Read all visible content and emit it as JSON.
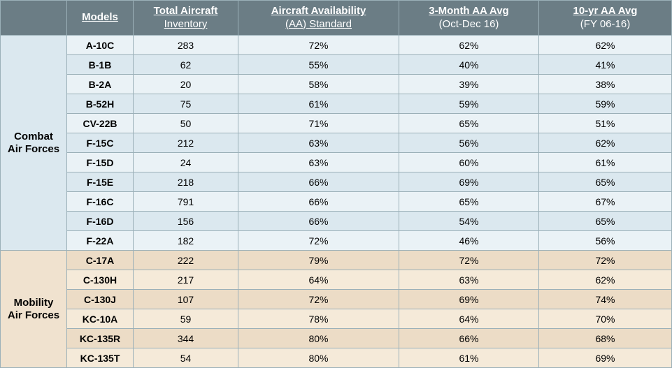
{
  "columns": {
    "models": "Models",
    "inventory": {
      "line1": "Total Aircraft",
      "line2": "Inventory"
    },
    "aa_standard": {
      "line1": "Aircraft Availability",
      "line2": "(AA) Standard"
    },
    "three_month": {
      "line1": "3-Month AA Avg",
      "line2": "(Oct-Dec 16)"
    },
    "ten_year": {
      "line1": "10-yr AA Avg",
      "line2": "(FY 06-16)"
    }
  },
  "groups": [
    {
      "label_line1": "Combat",
      "label_line2": "Air Forces",
      "class": "combat",
      "cat_class": "cat-combat",
      "rows": [
        {
          "model": "A-10C",
          "inventory": "283",
          "aa_standard": "72%",
          "three_month": "62%",
          "ten_year": "62%"
        },
        {
          "model": "B-1B",
          "inventory": "62",
          "aa_standard": "55%",
          "three_month": "40%",
          "ten_year": "41%"
        },
        {
          "model": "B-2A",
          "inventory": "20",
          "aa_standard": "58%",
          "three_month": "39%",
          "ten_year": "38%"
        },
        {
          "model": "B-52H",
          "inventory": "75",
          "aa_standard": "61%",
          "three_month": "59%",
          "ten_year": "59%"
        },
        {
          "model": "CV-22B",
          "inventory": "50",
          "aa_standard": "71%",
          "three_month": "65%",
          "ten_year": "51%"
        },
        {
          "model": "F-15C",
          "inventory": "212",
          "aa_standard": "63%",
          "three_month": "56%",
          "ten_year": "62%"
        },
        {
          "model": "F-15D",
          "inventory": "24",
          "aa_standard": "63%",
          "three_month": "60%",
          "ten_year": "61%"
        },
        {
          "model": "F-15E",
          "inventory": "218",
          "aa_standard": "66%",
          "three_month": "69%",
          "ten_year": "65%"
        },
        {
          "model": "F-16C",
          "inventory": "791",
          "aa_standard": "66%",
          "three_month": "65%",
          "ten_year": "67%"
        },
        {
          "model": "F-16D",
          "inventory": "156",
          "aa_standard": "66%",
          "three_month": "54%",
          "ten_year": "65%"
        },
        {
          "model": "F-22A",
          "inventory": "182",
          "aa_standard": "72%",
          "three_month": "46%",
          "ten_year": "56%"
        }
      ]
    },
    {
      "label_line1": "Mobility",
      "label_line2": "Air Forces",
      "class": "mobility",
      "cat_class": "cat-mobility",
      "rows": [
        {
          "model": "C-17A",
          "inventory": "222",
          "aa_standard": "79%",
          "three_month": "72%",
          "ten_year": "72%"
        },
        {
          "model": "C-130H",
          "inventory": "217",
          "aa_standard": "64%",
          "three_month": "63%",
          "ten_year": "62%"
        },
        {
          "model": "C-130J",
          "inventory": "107",
          "aa_standard": "72%",
          "three_month": "69%",
          "ten_year": "74%"
        },
        {
          "model": "KC-10A",
          "inventory": "59",
          "aa_standard": "78%",
          "three_month": "64%",
          "ten_year": "70%"
        },
        {
          "model": "KC-135R",
          "inventory": "344",
          "aa_standard": "80%",
          "three_month": "66%",
          "ten_year": "68%"
        },
        {
          "model": "KC-135T",
          "inventory": "54",
          "aa_standard": "80%",
          "three_month": "61%",
          "ten_year": "69%"
        }
      ]
    }
  ],
  "style": {
    "header_bg": "#6b7d85",
    "header_fg": "#ffffff",
    "border_color": "#9bb0b8",
    "combat_bg_a": "#dbe8ef",
    "combat_bg_b": "#eaf2f6",
    "mobility_bg_a": "#ecdcc6",
    "mobility_bg_b": "#f5ead9"
  }
}
